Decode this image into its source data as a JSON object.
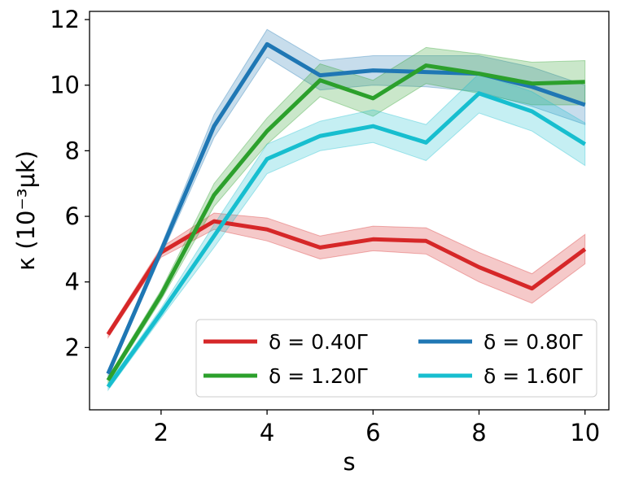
{
  "chart_data": {
    "type": "line",
    "title": "",
    "xlabel": "s",
    "ylabel": "κ (10⁻³μk)",
    "xlim": [
      0.65,
      10.45
    ],
    "ylim": [
      0.1,
      12.25
    ],
    "xticks": [
      2,
      4,
      6,
      8,
      10
    ],
    "yticks": [
      2,
      4,
      6,
      8,
      10,
      12
    ],
    "grid": false,
    "legend_position": "lower-right",
    "x": [
      1,
      2,
      3,
      4,
      5,
      6,
      7,
      8,
      9,
      10
    ],
    "series": [
      {
        "name": "δ = 0.40Γ",
        "color": "#d62728",
        "values": [
          2.4,
          4.9,
          5.85,
          5.6,
          5.05,
          5.3,
          5.25,
          4.45,
          3.8,
          5.0
        ],
        "lower": [
          2.3,
          4.75,
          5.6,
          5.25,
          4.7,
          4.95,
          4.85,
          4.0,
          3.35,
          4.55
        ],
        "upper": [
          2.5,
          5.05,
          6.1,
          5.95,
          5.4,
          5.7,
          5.65,
          4.9,
          4.25,
          5.45
        ]
      },
      {
        "name": "δ = 0.80Γ",
        "color": "#1f77b4",
        "values": [
          1.2,
          4.95,
          8.75,
          11.25,
          10.3,
          10.45,
          10.4,
          10.35,
          9.95,
          9.4
        ],
        "lower": [
          1.1,
          4.8,
          8.4,
          10.85,
          9.85,
          10.0,
          9.95,
          9.8,
          9.35,
          8.8
        ],
        "upper": [
          1.3,
          5.1,
          9.1,
          11.7,
          10.75,
          10.9,
          10.9,
          10.9,
          10.55,
          10.0
        ]
      },
      {
        "name": "δ = 1.20Γ",
        "color": "#2ca02c",
        "values": [
          1.0,
          3.6,
          6.65,
          8.6,
          10.15,
          9.6,
          10.6,
          10.35,
          10.05,
          10.1
        ],
        "lower": [
          0.9,
          3.45,
          6.3,
          8.2,
          9.65,
          9.05,
          10.05,
          9.75,
          9.4,
          9.4
        ],
        "upper": [
          1.1,
          3.75,
          7.0,
          9.0,
          10.65,
          10.15,
          11.15,
          10.95,
          10.7,
          10.75
        ]
      },
      {
        "name": "δ = 1.60Γ",
        "color": "#17becf",
        "values": [
          0.8,
          3.05,
          5.4,
          7.75,
          8.45,
          8.75,
          8.25,
          9.75,
          9.2,
          8.2
        ],
        "lower": [
          0.7,
          2.9,
          5.05,
          7.3,
          8.0,
          8.25,
          7.7,
          9.15,
          8.6,
          7.55
        ],
        "upper": [
          0.9,
          3.2,
          5.75,
          8.2,
          8.9,
          9.25,
          8.8,
          10.35,
          9.8,
          8.85
        ]
      }
    ]
  }
}
